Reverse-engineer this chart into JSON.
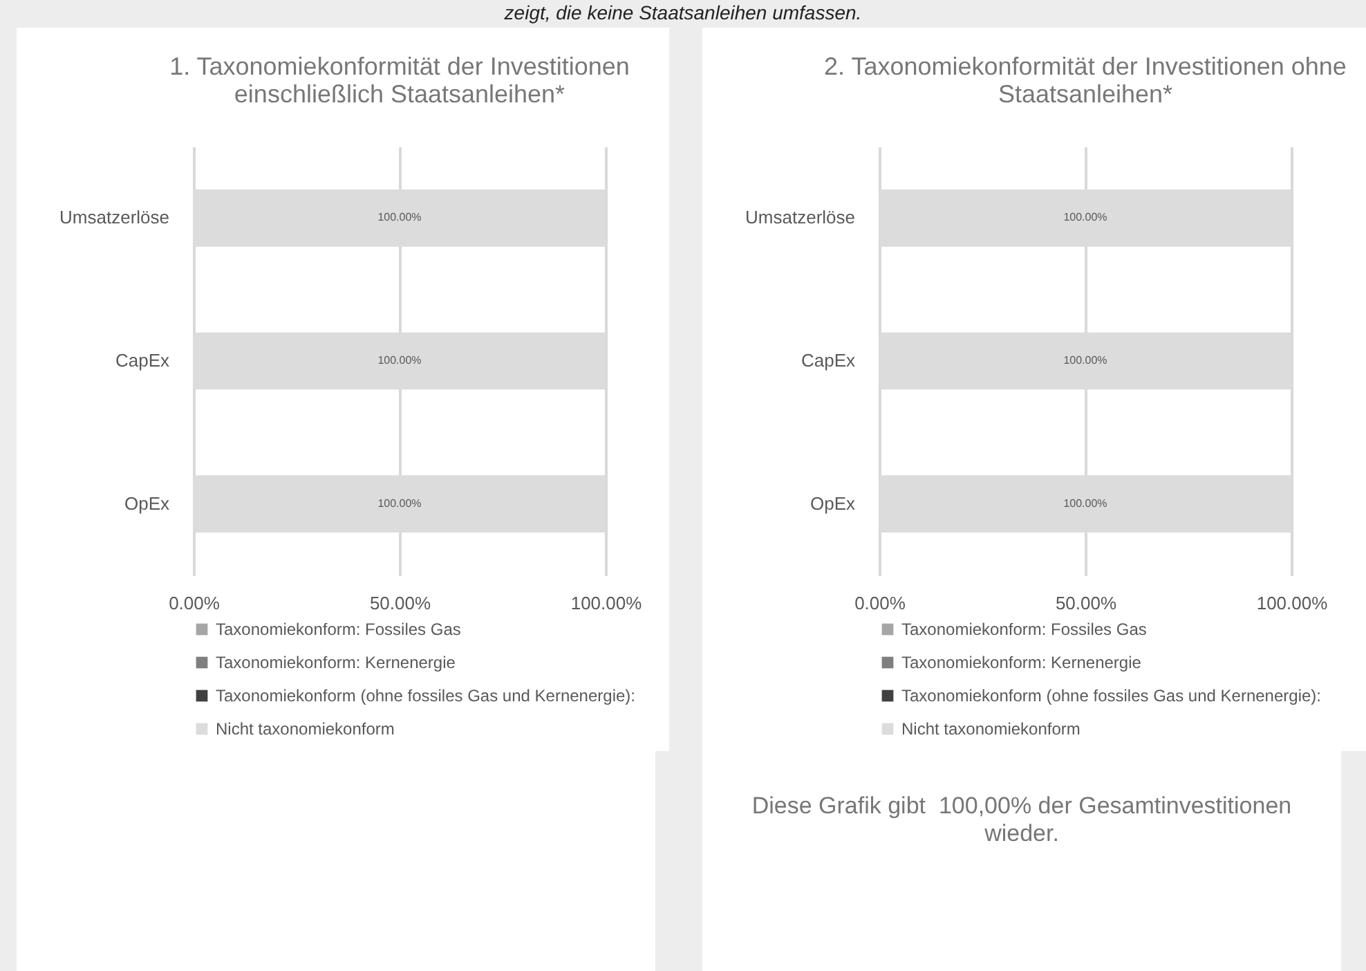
{
  "chart_data": [
    {
      "type": "bar",
      "orientation": "horizontal",
      "stacked": true,
      "title": "1. Taxonomiekonformität der Investitionen einschließlich Staatsanleihen*",
      "categories": [
        "Umsatzerlöse",
        "CapEx",
        "OpEx"
      ],
      "series": [
        {
          "name": "Taxonomiekonform: Fossiles Gas",
          "color": "#a6a6a6",
          "values": [
            0,
            0,
            0
          ]
        },
        {
          "name": "Taxonomiekonform: Kernenergie",
          "color": "#7f7f7f",
          "values": [
            0,
            0,
            0
          ]
        },
        {
          "name": "Taxonomiekonform (ohne fossiles Gas und Kernenergie):",
          "color": "#404040",
          "values": [
            0,
            0,
            0
          ]
        },
        {
          "name": "Nicht taxonomiekonform",
          "color": "#dcdcdc",
          "values": [
            100,
            100,
            100
          ],
          "value_labels": [
            "100.00%",
            "100.00%",
            "100.00%"
          ]
        }
      ],
      "xlim": [
        0,
        100
      ],
      "xticks": [
        {
          "value": 0,
          "label": "0.00%"
        },
        {
          "value": 50,
          "label": "50.00%"
        },
        {
          "value": 100,
          "label": "100.00%"
        }
      ],
      "grid": "x",
      "legend": "bottom",
      "annotations": [
        "zeigt, die keine Staatsanleihen umfassen."
      ]
    },
    {
      "type": "bar",
      "orientation": "horizontal",
      "stacked": true,
      "title": "2. Taxonomiekonformität der Investitionen ohne Staatsanleihen*",
      "categories": [
        "Umsatzerlöse",
        "CapEx",
        "OpEx"
      ],
      "series": [
        {
          "name": "Taxonomiekonform: Fossiles Gas",
          "color": "#a6a6a6",
          "values": [
            0,
            0,
            0
          ]
        },
        {
          "name": "Taxonomiekonform: Kernenergie",
          "color": "#7f7f7f",
          "values": [
            0,
            0,
            0
          ]
        },
        {
          "name": "Taxonomiekonform (ohne fossiles Gas und Kernenergie):",
          "color": "#404040",
          "values": [
            0,
            0,
            0
          ]
        },
        {
          "name": "Nicht taxonomiekonform",
          "color": "#dcdcdc",
          "values": [
            100,
            100,
            100
          ],
          "value_labels": [
            "100.00%",
            "100.00%",
            "100.00%"
          ]
        }
      ],
      "xlim": [
        0,
        100
      ],
      "xticks": [
        {
          "value": 0,
          "label": "0.00%"
        },
        {
          "value": 50,
          "label": "50.00%"
        },
        {
          "value": 100,
          "label": "100.00%"
        }
      ],
      "grid": "x",
      "legend": "bottom",
      "annotations": [
        "Diese Grafik gibt  100,00% der Gesamtinvestitionen wieder."
      ]
    }
  ]
}
